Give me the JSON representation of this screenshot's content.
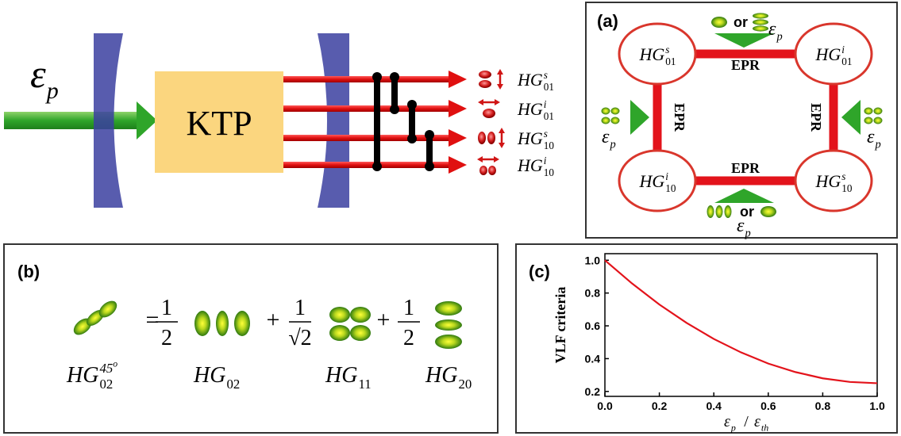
{
  "schematic": {
    "pump": {
      "base": "ε",
      "sub": "p"
    },
    "crystal": "KTP",
    "outputs": [
      {
        "base": "HG",
        "sup": "s",
        "sub": "01"
      },
      {
        "base": "HG",
        "sup": "i",
        "sub": "01"
      },
      {
        "base": "HG",
        "sup": "s",
        "sub": "10"
      },
      {
        "base": "HG",
        "sup": "i",
        "sub": "10"
      }
    ]
  },
  "panel_a": {
    "label": "(a)",
    "nodes": [
      {
        "base": "HG",
        "sup": "s",
        "sub": "01"
      },
      {
        "base": "HG",
        "sup": "i",
        "sub": "01"
      },
      {
        "base": "HG",
        "sup": "i",
        "sub": "10"
      },
      {
        "base": "HG",
        "sup": "s",
        "sub": "10"
      }
    ],
    "links": [
      "EPR",
      "EPR",
      "EPR",
      "EPR"
    ],
    "or": [
      "or",
      "or"
    ],
    "pumps": [
      {
        "base": "ε",
        "sub": "p"
      },
      {
        "base": "ε",
        "sub": "p"
      },
      {
        "base": "ε",
        "sub": "p"
      },
      {
        "base": "ε",
        "sub": "p"
      }
    ]
  },
  "panel_b": {
    "label": "(b)",
    "operators": [
      "=",
      "+",
      "+"
    ],
    "fractions": [
      {
        "num": "1",
        "den": "2"
      },
      {
        "num": "1",
        "den": "√2"
      },
      {
        "num": "1",
        "den": "2"
      }
    ],
    "modes": [
      {
        "base": "HG",
        "sup": "45",
        "sup2": "o",
        "sub": "02"
      },
      {
        "base": "HG",
        "sub": "02"
      },
      {
        "base": "HG",
        "sub": "11"
      },
      {
        "base": "HG",
        "sub": "20"
      }
    ]
  },
  "panel_c": {
    "label": "(c)",
    "type": "line",
    "ylabel": "VLF criteria",
    "xlabel": {
      "num": {
        "base": "ε",
        "sub": "p"
      },
      "sep": "/",
      "den": {
        "base": "ε",
        "sub": "th"
      }
    },
    "x": [
      0,
      0.1,
      0.2,
      0.3,
      0.4,
      0.5,
      0.6,
      0.7,
      0.8,
      0.9,
      1
    ],
    "values": [
      1.0,
      0.858,
      0.73,
      0.618,
      0.52,
      0.438,
      0.37,
      0.318,
      0.28,
      0.258,
      0.25
    ],
    "color": "#e3131b",
    "xlim": [
      0,
      1
    ],
    "ylim": [
      0.17,
      1.04
    ],
    "xticks": [
      {
        "value": 0,
        "label": "0.0"
      },
      0.2,
      0.4,
      0.6,
      0.8,
      {
        "value": 1,
        "label": "1.0"
      }
    ],
    "yticks": [
      0.2,
      0.4,
      0.6,
      0.8,
      {
        "value": 1,
        "label": "1.0"
      }
    ]
  }
}
